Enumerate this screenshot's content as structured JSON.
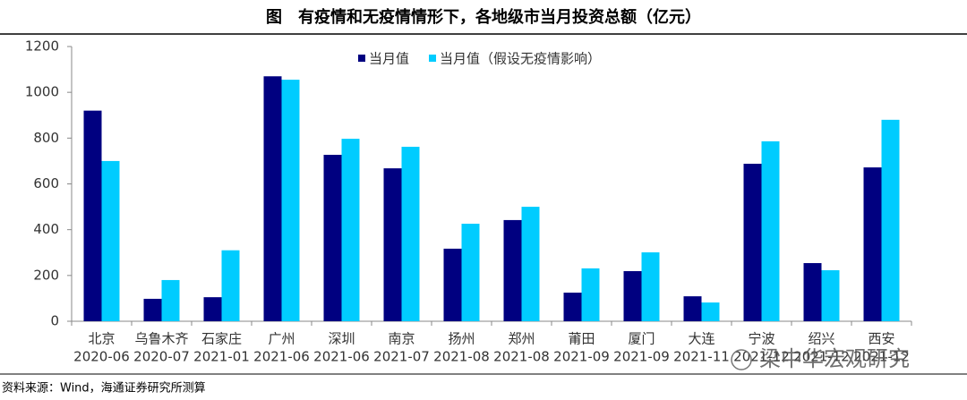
{
  "chart_data": {
    "type": "bar",
    "title": "图　有疫情和无疫情情形下，各地级市当月投资总额（亿元）",
    "categories": [
      "北京",
      "乌鲁木齐",
      "石家庄",
      "广州",
      "深圳",
      "南京",
      "扬州",
      "郑州",
      "莆田",
      "厦门",
      "大连",
      "宁波",
      "绍兴",
      "西安"
    ],
    "category_dates": [
      "2020-06",
      "2020-07",
      "2021-01",
      "2021-06",
      "2021-06",
      "2021-07",
      "2021-08",
      "2021-08",
      "2021-09",
      "2021-09",
      "2021-11",
      "2021-12",
      "2021-12",
      "2021-12"
    ],
    "series": [
      {
        "name": "当月值",
        "color": "#000080",
        "values": [
          920,
          98,
          105,
          1070,
          727,
          668,
          317,
          442,
          125,
          219,
          109,
          688,
          254,
          672
        ]
      },
      {
        "name": "当月值（假设无疫情影响）",
        "color": "#00ccff",
        "values": [
          700,
          180,
          310,
          1055,
          797,
          762,
          426,
          500,
          231,
          301,
          82,
          786,
          223,
          880
        ]
      }
    ],
    "ylim": [
      0,
      1200
    ],
    "yticks": [
      0,
      200,
      400,
      600,
      800,
      1000,
      1200
    ],
    "grid": false,
    "legend": "top",
    "source": "资料来源：Wind，海通证券研究所测算",
    "watermark": "梁中华宏观研究"
  }
}
